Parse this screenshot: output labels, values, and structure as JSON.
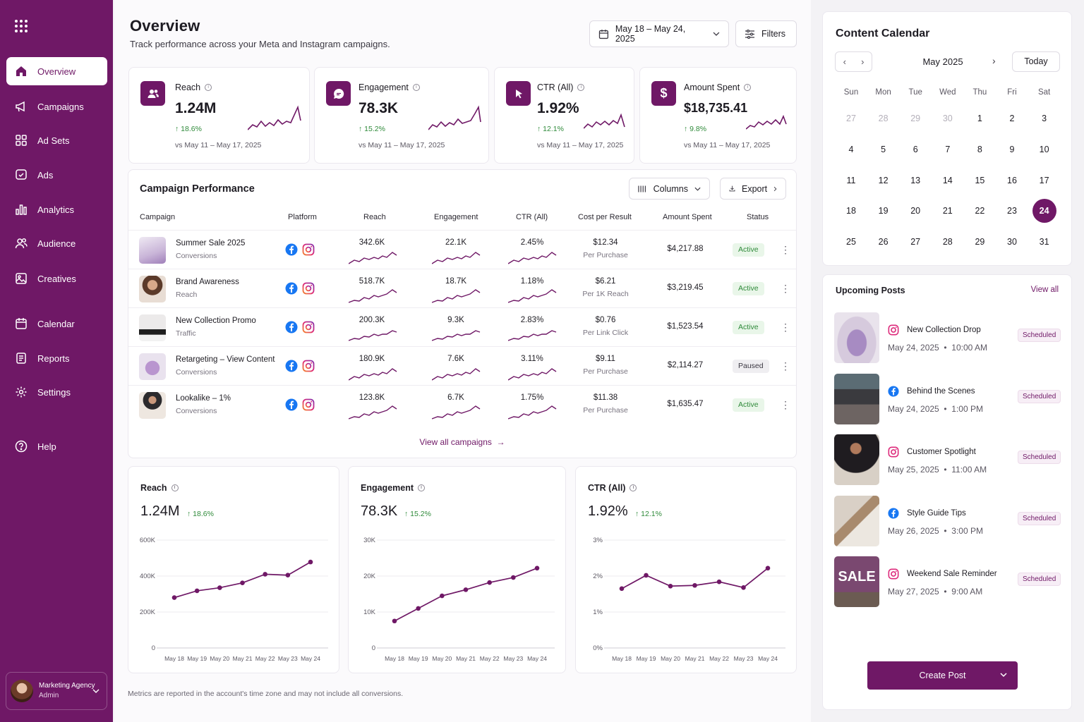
{
  "sidebar": {
    "items": [
      {
        "label": "Overview",
        "icon": "home-icon"
      },
      {
        "label": "Campaigns",
        "icon": "megaphone-icon"
      },
      {
        "label": "Ad Sets",
        "icon": "grid-icon"
      },
      {
        "label": "Ads",
        "icon": "ad-icon"
      },
      {
        "label": "Analytics",
        "icon": "bar-chart-icon"
      },
      {
        "label": "Audience",
        "icon": "users-icon"
      },
      {
        "label": "Creatives",
        "icon": "image-icon"
      },
      {
        "label": "Calendar",
        "icon": "calendar-icon"
      },
      {
        "label": "Reports",
        "icon": "document-icon"
      },
      {
        "label": "Settings",
        "icon": "gear-icon"
      },
      {
        "label": "Help",
        "icon": "help-icon"
      }
    ],
    "profile": {
      "name": "Marketing Agency",
      "role": "Admin"
    }
  },
  "header": {
    "title": "Overview",
    "subtitle": "Track performance across your Meta and Instagram campaigns.",
    "date_range": "May 18 – May 24, 2025",
    "filters_label": "Filters"
  },
  "kpis": [
    {
      "label": "Reach",
      "value": "1.24M",
      "change": "18.6%",
      "compare": "vs May 11 – May 17, 2025",
      "icon": "users-icon"
    },
    {
      "label": "Engagement",
      "value": "78.3K",
      "change": "15.2%",
      "compare": "vs May 11 – May 17, 2025",
      "icon": "chat-icon"
    },
    {
      "label": "CTR (All)",
      "value": "1.92%",
      "change": "12.1%",
      "compare": "vs May 11 – May 17, 2025",
      "icon": "cursor-icon"
    },
    {
      "label": "Amount Spent",
      "value": "$18,735.41",
      "change": "9.8%",
      "compare": "vs May 11 – May 17, 2025",
      "icon": "dollar-icon"
    }
  ],
  "campaign_table": {
    "title": "Campaign Performance",
    "columns_label": "Columns",
    "export_label": "Export",
    "headers": [
      "Campaign",
      "Platform",
      "Reach",
      "Engagement",
      "CTR (All)",
      "Cost per Result",
      "Amount Spent",
      "Status"
    ],
    "rows": [
      {
        "name": "Summer Sale 2025",
        "objective": "Conversions",
        "reach": "342.6K",
        "engagement": "22.1K",
        "ctr": "2.45%",
        "cost": "$12.34",
        "cost_unit": "Per Purchase",
        "spent": "$4,217.88",
        "status": "Active"
      },
      {
        "name": "Brand Awareness",
        "objective": "Reach",
        "reach": "518.7K",
        "engagement": "18.7K",
        "ctr": "1.18%",
        "cost": "$6.21",
        "cost_unit": "Per 1K Reach",
        "spent": "$3,219.45",
        "status": "Active"
      },
      {
        "name": "New Collection Promo",
        "objective": "Traffic",
        "reach": "200.3K",
        "engagement": "9.3K",
        "ctr": "2.83%",
        "cost": "$0.76",
        "cost_unit": "Per Link Click",
        "spent": "$1,523.54",
        "status": "Active"
      },
      {
        "name": "Retargeting – View Content",
        "objective": "Conversions",
        "reach": "180.9K",
        "engagement": "7.6K",
        "ctr": "3.11%",
        "cost": "$9.11",
        "cost_unit": "Per Purchase",
        "spent": "$2,114.27",
        "status": "Paused"
      },
      {
        "name": "Lookalike – 1%",
        "objective": "Conversions",
        "reach": "123.8K",
        "engagement": "6.7K",
        "ctr": "1.75%",
        "cost": "$11.38",
        "cost_unit": "Per Purchase",
        "spent": "$1,635.47",
        "status": "Active"
      }
    ],
    "view_all": "View all campaigns"
  },
  "chart_data": [
    {
      "type": "line",
      "title": "Reach",
      "value": "1.24M",
      "change": "18.6%",
      "categories": [
        "May 18",
        "May 19",
        "May 20",
        "May 21",
        "May 22",
        "May 23",
        "May 24"
      ],
      "values": [
        280000,
        318000,
        335000,
        362000,
        410000,
        405000,
        478000
      ],
      "ylim": [
        0,
        600000
      ],
      "yticks": [
        "0",
        "200K",
        "400K",
        "600K"
      ],
      "grid": true
    },
    {
      "type": "line",
      "title": "Engagement",
      "value": "78.3K",
      "change": "15.2%",
      "categories": [
        "May 18",
        "May 19",
        "May 20",
        "May 21",
        "May 22",
        "May 23",
        "May 24"
      ],
      "values": [
        7500,
        11000,
        14500,
        16200,
        18200,
        19600,
        22200
      ],
      "ylim": [
        0,
        30000
      ],
      "yticks": [
        "0",
        "10K",
        "20K",
        "30K"
      ],
      "grid": true
    },
    {
      "type": "line",
      "title": "CTR (All)",
      "value": "1.92%",
      "change": "12.1%",
      "categories": [
        "May 18",
        "May 19",
        "May 20",
        "May 21",
        "May 22",
        "May 23",
        "May 24"
      ],
      "values": [
        1.65,
        2.02,
        1.72,
        1.74,
        1.84,
        1.68,
        2.22
      ],
      "ylim": [
        0,
        3
      ],
      "yticks": [
        "0%",
        "1%",
        "2%",
        "3%"
      ],
      "grid": true
    }
  ],
  "footnote": "Metrics are reported in the account's time zone and may not include all conversions.",
  "calendar": {
    "title": "Content Calendar",
    "month": "May 2025",
    "today_label": "Today",
    "weekdays": [
      "Sun",
      "Mon",
      "Tue",
      "Wed",
      "Thu",
      "Fri",
      "Sat"
    ],
    "days": [
      "27",
      "28",
      "29",
      "30",
      "1",
      "2",
      "3",
      "4",
      "5",
      "6",
      "7",
      "8",
      "9",
      "10",
      "11",
      "12",
      "13",
      "14",
      "15",
      "16",
      "17",
      "18",
      "19",
      "20",
      "21",
      "22",
      "23",
      "24",
      "25",
      "26",
      "27",
      "28",
      "29",
      "30",
      "31"
    ],
    "selected_day": "24"
  },
  "upcoming": {
    "title": "Upcoming Posts",
    "view_all": "View all",
    "posts": [
      {
        "title": "New Collection Drop",
        "date": "May 24, 2025",
        "time": "10:00 AM",
        "platform": "instagram",
        "status": "Scheduled"
      },
      {
        "title": "Behind the Scenes",
        "date": "May 24, 2025",
        "time": "1:00 PM",
        "platform": "facebook",
        "status": "Scheduled"
      },
      {
        "title": "Customer Spotlight",
        "date": "May 25, 2025",
        "time": "11:00 AM",
        "platform": "instagram",
        "status": "Scheduled"
      },
      {
        "title": "Style Guide Tips",
        "date": "May 26, 2025",
        "time": "3:00 PM",
        "platform": "facebook",
        "status": "Scheduled"
      },
      {
        "title": "Weekend Sale Reminder",
        "date": "May 27, 2025",
        "time": "9:00 AM",
        "platform": "instagram",
        "status": "Scheduled"
      }
    ],
    "sale_text": "SALE",
    "create_label": "Create Post"
  },
  "colors": {
    "accent": "#6f1866",
    "positive": "#2f8a3a"
  }
}
